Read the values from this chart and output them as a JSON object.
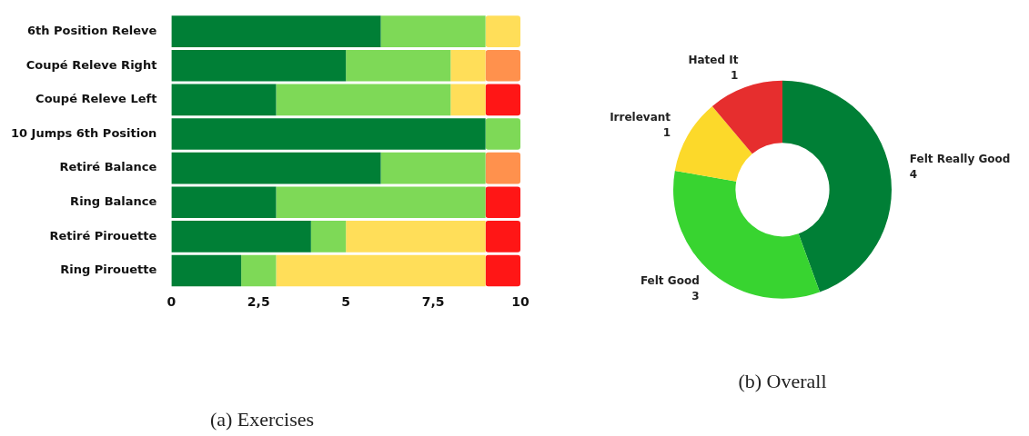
{
  "chart_data": [
    {
      "type": "bar",
      "orientation": "horizontal",
      "stacked": true,
      "title": "(a) Exercises",
      "categories": [
        "6th Position Releve",
        "Coupé Releve Right",
        "Coupé Releve Left",
        "10 Jumps 6th Position",
        "Retiré Balance",
        "Ring Balance",
        "Retiré Pirouette",
        "Ring Pirouette"
      ],
      "series": [
        {
          "color": "#007f36",
          "values": [
            6,
            5,
            3,
            9,
            6,
            3,
            4,
            2
          ]
        },
        {
          "color": "#7ed957",
          "values": [
            3,
            3,
            5,
            1,
            3,
            6,
            1,
            1
          ]
        },
        {
          "color": "#ffde59",
          "values": [
            1,
            1,
            1,
            0,
            0,
            0,
            4,
            6
          ]
        },
        {
          "color": "#ff914d",
          "values": [
            0,
            1,
            0,
            0,
            1,
            0,
            0,
            0
          ]
        },
        {
          "color": "#ff1616",
          "values": [
            0,
            0,
            1,
            0,
            0,
            1,
            1,
            1
          ]
        }
      ],
      "xlim": [
        0,
        10
      ],
      "xticks": [
        0,
        {
          "value": 2.5,
          "label": "2,5"
        },
        5,
        {
          "value": 7.5,
          "label": "7,5"
        },
        10
      ],
      "grid": false,
      "legend": false
    },
    {
      "type": "donut",
      "title": "(b) Overall",
      "data_labels": true,
      "categories": [
        "Felt Really Good",
        "Felt Good",
        "Irrelevant",
        "Hated It"
      ],
      "values": [
        4,
        3,
        1,
        1
      ],
      "colors": [
        "#007f36",
        "#38d430",
        "#fcd92a",
        "#e62e2e"
      ],
      "legend": false
    }
  ]
}
